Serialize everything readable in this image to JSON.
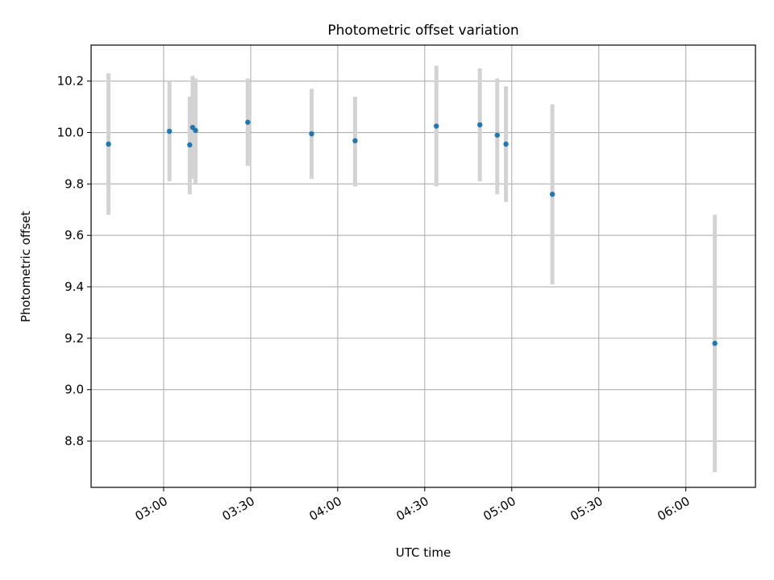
{
  "chart_data": {
    "type": "scatter",
    "title": "Photometric offset variation",
    "xlabel": "UTC time",
    "ylabel": "Photometric offset",
    "x_ticks": [
      "03:00",
      "03:30",
      "04:00",
      "04:30",
      "05:00",
      "05:30",
      "06:00"
    ],
    "y_ticks": [
      "8.8",
      "9.0",
      "9.2",
      "9.4",
      "9.6",
      "9.8",
      "10.0",
      "10.2"
    ],
    "xlim": [
      "02:35",
      "06:24"
    ],
    "ylim": [
      8.62,
      10.34
    ],
    "grid": true,
    "point_color": "#1f77b4",
    "errorbar_color": "#d3d3d3",
    "points": [
      {
        "x": "02:41",
        "y": 9.955,
        "yerr_low": 9.68,
        "yerr_high": 10.23
      },
      {
        "x": "03:02",
        "y": 10.005,
        "yerr_low": 9.81,
        "yerr_high": 10.2
      },
      {
        "x": "03:09",
        "y": 9.952,
        "yerr_low": 9.76,
        "yerr_high": 10.14
      },
      {
        "x": "03:10",
        "y": 10.02,
        "yerr_low": 9.82,
        "yerr_high": 10.22
      },
      {
        "x": "03:11",
        "y": 10.008,
        "yerr_low": 9.8,
        "yerr_high": 10.21
      },
      {
        "x": "03:29",
        "y": 10.04,
        "yerr_low": 9.87,
        "yerr_high": 10.21
      },
      {
        "x": "03:51",
        "y": 9.995,
        "yerr_low": 9.82,
        "yerr_high": 10.17
      },
      {
        "x": "04:06",
        "y": 9.968,
        "yerr_low": 9.79,
        "yerr_high": 10.14
      },
      {
        "x": "04:34",
        "y": 10.025,
        "yerr_low": 9.79,
        "yerr_high": 10.26
      },
      {
        "x": "04:49",
        "y": 10.03,
        "yerr_low": 9.81,
        "yerr_high": 10.25
      },
      {
        "x": "04:55",
        "y": 9.99,
        "yerr_low": 9.76,
        "yerr_high": 10.21
      },
      {
        "x": "04:58",
        "y": 9.955,
        "yerr_low": 9.73,
        "yerr_high": 10.18
      },
      {
        "x": "05:14",
        "y": 9.76,
        "yerr_low": 9.41,
        "yerr_high": 10.11
      },
      {
        "x": "06:10",
        "y": 9.18,
        "yerr_low": 8.68,
        "yerr_high": 9.68
      }
    ]
  }
}
